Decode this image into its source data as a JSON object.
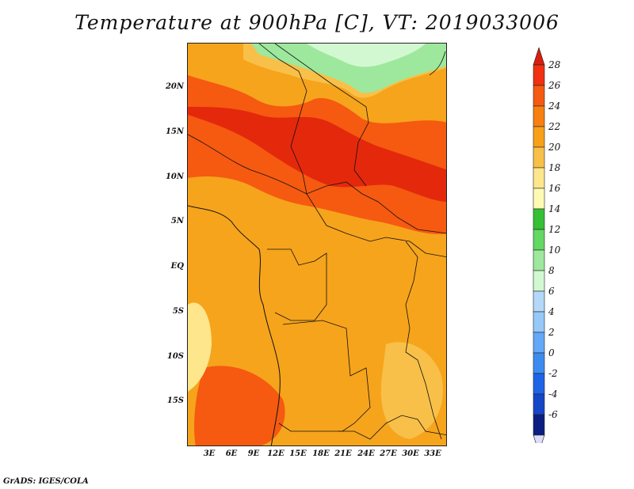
{
  "title": "Temperature at 900hPa [C], VT: 2019033006",
  "y_axis_labels": [
    "20N",
    "15N",
    "10N",
    "5N",
    "EQ",
    "5S",
    "10S",
    "15S"
  ],
  "x_axis_labels": [
    "3E",
    "6E",
    "9E",
    "12E",
    "15E",
    "18E",
    "21E",
    "24E",
    "27E",
    "30E",
    "33E"
  ],
  "colorbar": {
    "levels": [
      "28",
      "26",
      "24",
      "22",
      "20",
      "18",
      "16",
      "14",
      "12",
      "10",
      "8",
      "6",
      "4",
      "2",
      "0",
      "-2",
      "-4",
      "-6"
    ],
    "colors": [
      "#f03010",
      "#f55a10",
      "#f78010",
      "#f8a01a",
      "#f8c048",
      "#fde68c",
      "#fefab4",
      "#35c035",
      "#63d863",
      "#9de89d",
      "#d2f8d2",
      "#b4d8f8",
      "#96c8f8",
      "#64a8f8",
      "#3c8cf0",
      "#1e64e6",
      "#1446c8",
      "#0a1e82"
    ],
    "top_arrow_color": "#d81e10",
    "bottom_arrow_color": "#dcdcf8"
  },
  "credit": "GrADS: IGES/COLA"
}
